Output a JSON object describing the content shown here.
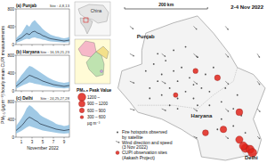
{
  "chart_data": [
    {
      "type": "line",
      "title": "(a) Punjab",
      "subtitle": "Site : 4,8,13",
      "tick_labels": "y",
      "x": [
        0,
        0.5,
        1,
        1.5,
        2,
        2.5,
        3,
        3.5,
        4,
        4.5,
        5,
        5.5,
        6,
        6.5,
        7,
        7.5,
        8,
        8.5,
        9,
        9.5,
        10
      ],
      "xlim": [
        0,
        10
      ],
      "xticks": [
        1,
        3,
        5,
        7,
        9
      ],
      "ylim": [
        0,
        800
      ],
      "yticks": [
        0,
        400,
        800
      ],
      "series": [
        {
          "color": "#1f2d3d",
          "values": [
            80,
            120,
            150,
            200,
            250,
            220,
            280,
            300,
            260,
            240,
            200,
            180,
            150,
            130,
            120,
            110,
            100,
            90,
            80,
            90,
            100
          ],
          "band_low": [
            40,
            60,
            80,
            110,
            130,
            120,
            150,
            160,
            140,
            130,
            110,
            100,
            80,
            70,
            65,
            60,
            55,
            50,
            45,
            50,
            55
          ],
          "band_high": [
            140,
            200,
            250,
            350,
            450,
            400,
            500,
            550,
            480,
            420,
            350,
            300,
            260,
            220,
            200,
            180,
            170,
            150,
            140,
            150,
            170
          ]
        }
      ]
    },
    {
      "type": "line",
      "title": "(b) Haryana",
      "subtitle": "Site : 16,19,21,23",
      "tick_labels": "y",
      "ylabel": "PM₂.₅ (µg m⁻³) hourly mean CUPI measurements",
      "x": [
        0,
        0.5,
        1,
        1.5,
        2,
        2.5,
        3,
        3.5,
        4,
        4.5,
        5,
        5.5,
        6,
        6.5,
        7,
        7.5,
        8,
        8.5,
        9,
        9.5,
        10
      ],
      "xlim": [
        0,
        10
      ],
      "xticks": [
        1,
        3,
        5,
        7,
        9
      ],
      "ylim": [
        0,
        800
      ],
      "yticks": [
        0,
        400,
        800
      ],
      "series": [
        {
          "color": "#1f2d3d",
          "values": [
            100,
            150,
            200,
            250,
            300,
            350,
            330,
            300,
            280,
            250,
            220,
            200,
            180,
            160,
            140,
            130,
            120,
            110,
            100,
            110,
            120
          ],
          "band_low": [
            50,
            80,
            110,
            140,
            160,
            190,
            180,
            160,
            150,
            140,
            120,
            110,
            100,
            90,
            80,
            70,
            65,
            60,
            55,
            60,
            65
          ],
          "band_high": [
            180,
            260,
            350,
            420,
            500,
            560,
            540,
            500,
            460,
            420,
            380,
            340,
            300,
            270,
            240,
            220,
            200,
            190,
            180,
            190,
            200
          ]
        }
      ]
    },
    {
      "type": "line",
      "title": "(c) Delhi",
      "subtitle": "Site : 24,25,27,28",
      "xlabel": "November 2022",
      "x": [
        0,
        0.5,
        1,
        1.5,
        2,
        2.5,
        3,
        3.5,
        4,
        4.5,
        5,
        5.5,
        6,
        6.5,
        7,
        7.5,
        8,
        8.5,
        9,
        9.5,
        10
      ],
      "xlim": [
        0,
        10
      ],
      "xticks": [
        1,
        3,
        5,
        7,
        9
      ],
      "ylim": [
        0,
        800
      ],
      "yticks": [
        0,
        400,
        800
      ],
      "series": [
        {
          "color": "#1f2d3d",
          "values": [
            150,
            200,
            250,
            320,
            400,
            450,
            420,
            380,
            350,
            300,
            280,
            260,
            240,
            220,
            200,
            180,
            170,
            160,
            150,
            160,
            170
          ],
          "band_low": [
            80,
            110,
            140,
            180,
            220,
            250,
            230,
            210,
            190,
            170,
            150,
            140,
            130,
            120,
            110,
            100,
            90,
            85,
            80,
            85,
            90
          ],
          "band_high": [
            250,
            330,
            420,
            520,
            650,
            720,
            680,
            620,
            570,
            500,
            460,
            430,
            400,
            370,
            340,
            300,
            280,
            270,
            250,
            260,
            280
          ]
        }
      ]
    }
  ],
  "map": {
    "title": "2-4 Nov 2022",
    "scale": {
      "km": 200,
      "label": "200 km"
    },
    "extent": {
      "lon": [
        73.8,
        77.6
      ],
      "lat": [
        28.3,
        32.6
      ]
    },
    "inset": {
      "label": "China"
    },
    "regions": [
      {
        "label": "Punjab",
        "lon": 74.6,
        "lat": 31.85
      },
      {
        "label": "Haryana",
        "lon": 76.0,
        "lat": 29.55
      },
      {
        "label": "Delhi",
        "lon": 77.25,
        "lat": 28.32
      }
    ],
    "fires": [
      [
        74.6,
        30.9
      ],
      [
        74.8,
        31.1
      ],
      [
        74.9,
        30.6
      ],
      [
        75.0,
        30.8
      ],
      [
        75.1,
        31.2
      ],
      [
        75.2,
        30.4
      ],
      [
        75.3,
        30.9
      ],
      [
        75.4,
        30.6
      ],
      [
        75.5,
        31.0
      ],
      [
        75.6,
        30.3
      ],
      [
        75.7,
        30.7
      ],
      [
        75.8,
        30.5
      ],
      [
        75.9,
        31.3
      ],
      [
        76.0,
        30.4
      ],
      [
        76.1,
        30.8
      ],
      [
        74.7,
        30.4
      ],
      [
        75.0,
        30.2
      ],
      [
        75.4,
        30.1
      ],
      [
        75.8,
        30.1
      ],
      [
        76.2,
        30.3
      ],
      [
        74.9,
        31.4
      ],
      [
        75.3,
        31.5
      ],
      [
        75.6,
        31.6
      ],
      [
        76.3,
        31.0
      ],
      [
        75.9,
        29.9
      ],
      [
        76.2,
        29.9
      ],
      [
        76.5,
        30.0
      ],
      [
        76.5,
        29.5
      ],
      [
        76.8,
        29.8
      ],
      [
        76.9,
        30.2
      ],
      [
        76.6,
        30.4
      ],
      [
        75.4,
        29.8
      ],
      [
        76.8,
        29.3
      ],
      [
        77.0,
        29.6
      ],
      [
        74.7,
        30.1
      ],
      [
        75.2,
        29.9
      ],
      [
        76.4,
        29.2
      ],
      [
        77.1,
        29.1
      ]
    ],
    "wind": [
      {
        "lon": 74.2,
        "lat": 32.2,
        "u": 1.5,
        "v": -1.2
      },
      {
        "lon": 75.8,
        "lat": 32.2,
        "u": 1.4,
        "v": -1.4
      },
      {
        "lon": 76.6,
        "lat": 32.2,
        "u": 1.2,
        "v": -1.5
      },
      {
        "lon": 74.2,
        "lat": 31.4,
        "u": 1.8,
        "v": -1.0
      },
      {
        "lon": 75.0,
        "lat": 31.4,
        "u": 1.6,
        "v": -1.2
      },
      {
        "lon": 75.8,
        "lat": 31.4,
        "u": 1.5,
        "v": -1.3
      },
      {
        "lon": 76.6,
        "lat": 31.4,
        "u": 1.3,
        "v": -1.5
      },
      {
        "lon": 77.4,
        "lat": 31.4,
        "u": 1.0,
        "v": -1.6
      },
      {
        "lon": 74.2,
        "lat": 30.6,
        "u": 1.9,
        "v": -0.8
      },
      {
        "lon": 75.0,
        "lat": 30.6,
        "u": 1.7,
        "v": -1.0
      },
      {
        "lon": 75.8,
        "lat": 30.6,
        "u": 1.6,
        "v": -1.2
      },
      {
        "lon": 76.6,
        "lat": 30.6,
        "u": 1.4,
        "v": -1.3
      },
      {
        "lon": 77.4,
        "lat": 30.6,
        "u": 1.1,
        "v": -1.5
      },
      {
        "lon": 74.2,
        "lat": 29.8,
        "u": 2.0,
        "v": -0.6
      },
      {
        "lon": 75.0,
        "lat": 29.8,
        "u": 1.8,
        "v": -0.8
      },
      {
        "lon": 75.8,
        "lat": 29.8,
        "u": 1.6,
        "v": -1.0
      },
      {
        "lon": 76.6,
        "lat": 29.8,
        "u": 1.4,
        "v": -1.2
      },
      {
        "lon": 77.4,
        "lat": 29.8,
        "u": 1.2,
        "v": -1.3
      },
      {
        "lon": 75.8,
        "lat": 29.0,
        "u": 1.5,
        "v": -0.8
      },
      {
        "lon": 76.6,
        "lat": 29.0,
        "u": 1.3,
        "v": -1.0
      },
      {
        "lon": 77.4,
        "lat": 29.0,
        "u": 1.1,
        "v": -1.1
      }
    ],
    "sites": [
      {
        "lon": 75.85,
        "lat": 30.9,
        "peak": 650
      },
      {
        "lon": 75.35,
        "lat": 30.2,
        "peak": 550
      },
      {
        "lon": 76.4,
        "lat": 30.7,
        "peak": 800
      },
      {
        "lon": 76.95,
        "lat": 29.7,
        "peak": 1000
      },
      {
        "lon": 76.55,
        "lat": 29.2,
        "peak": 950
      },
      {
        "lon": 76.1,
        "lat": 29.1,
        "peak": 850
      },
      {
        "lon": 76.95,
        "lat": 28.9,
        "peak": 1100
      },
      {
        "lon": 77.1,
        "lat": 28.65,
        "peak": 1300
      },
      {
        "lon": 77.22,
        "lat": 28.62,
        "peak": 1250
      },
      {
        "lon": 77.28,
        "lat": 28.52,
        "peak": 1350
      },
      {
        "lon": 77.05,
        "lat": 28.72,
        "peak": 1200
      }
    ],
    "legend": {
      "title": "PM₂.₅ Peak Value",
      "unit": "µg m⁻³",
      "bins": [
        {
          "value": 1200,
          "label": "1200 –"
        },
        {
          "value": 900,
          "label": "900 – 1200"
        },
        {
          "value": 600,
          "label": "600 – 900"
        },
        {
          "value": 300,
          "label": "300 – 600"
        }
      ]
    },
    "key": [
      "Fire hotspots observed by satellite",
      "Wind direction and speed (3 Nov 2022)",
      "CUPI observation sites (Aakash Project)"
    ]
  }
}
